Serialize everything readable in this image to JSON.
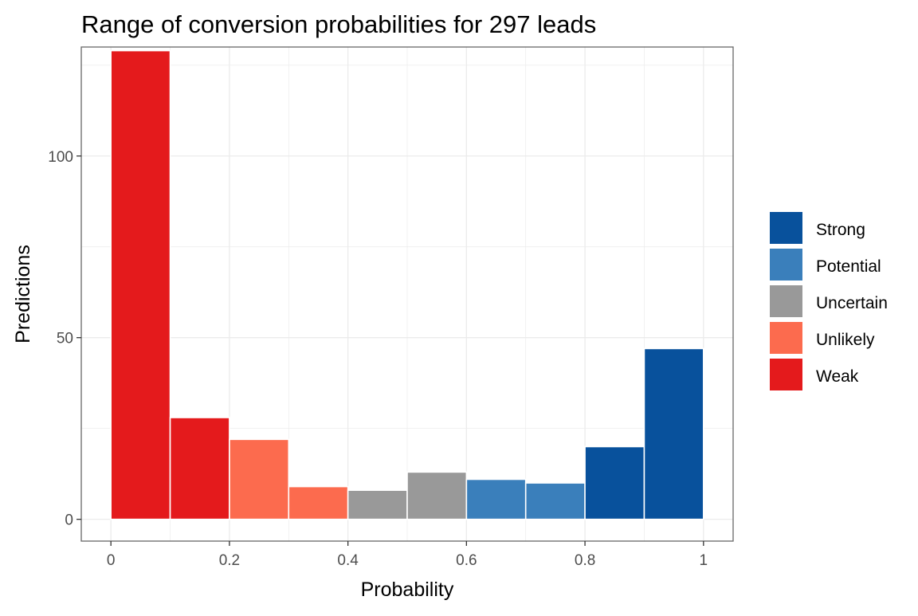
{
  "chart_data": {
    "type": "bar",
    "title": "Range of conversion probabilities for 297 leads",
    "xlabel": "Probability",
    "ylabel": "Predictions",
    "xlim": [
      -0.05,
      1.05
    ],
    "ylim": [
      -6,
      130
    ],
    "x_ticks": [
      {
        "value": 0,
        "label": "0"
      },
      {
        "value": 0.2,
        "label": "0.2"
      },
      {
        "value": 0.4,
        "label": "0.4"
      },
      {
        "value": 0.6,
        "label": "0.6"
      },
      {
        "value": 0.8,
        "label": "0.8"
      },
      {
        "value": 1,
        "label": "1"
      }
    ],
    "y_ticks": [
      {
        "value": 0,
        "label": "0"
      },
      {
        "value": 50,
        "label": "50"
      },
      {
        "value": 100,
        "label": "100"
      }
    ],
    "bins": [
      {
        "x0": 0.0,
        "x1": 0.1,
        "count": 129,
        "category": "Weak"
      },
      {
        "x0": 0.1,
        "x1": 0.2,
        "count": 28,
        "category": "Weak"
      },
      {
        "x0": 0.2,
        "x1": 0.3,
        "count": 22,
        "category": "Unlikely"
      },
      {
        "x0": 0.3,
        "x1": 0.4,
        "count": 9,
        "category": "Unlikely"
      },
      {
        "x0": 0.4,
        "x1": 0.5,
        "count": 8,
        "category": "Uncertain"
      },
      {
        "x0": 0.5,
        "x1": 0.6,
        "count": 13,
        "category": "Uncertain"
      },
      {
        "x0": 0.6,
        "x1": 0.7,
        "count": 11,
        "category": "Potential"
      },
      {
        "x0": 0.7,
        "x1": 0.8,
        "count": 10,
        "category": "Potential"
      },
      {
        "x0": 0.8,
        "x1": 0.9,
        "count": 20,
        "category": "Strong"
      },
      {
        "x0": 0.9,
        "x1": 1.0,
        "count": 47,
        "category": "Strong"
      }
    ],
    "legend": {
      "position": "right",
      "entries": [
        {
          "label": "Strong",
          "color": "#08519c"
        },
        {
          "label": "Potential",
          "color": "#3a7fbb"
        },
        {
          "label": "Uncertain",
          "color": "#999999"
        },
        {
          "label": "Unlikely",
          "color": "#fc6b4e"
        },
        {
          "label": "Weak",
          "color": "#e41a1c"
        }
      ]
    },
    "grid": true,
    "colors": {
      "panel_border": "#666666",
      "grid": "#ebebeb",
      "tick_text": "#4d4d4d",
      "text": "#000000"
    }
  }
}
